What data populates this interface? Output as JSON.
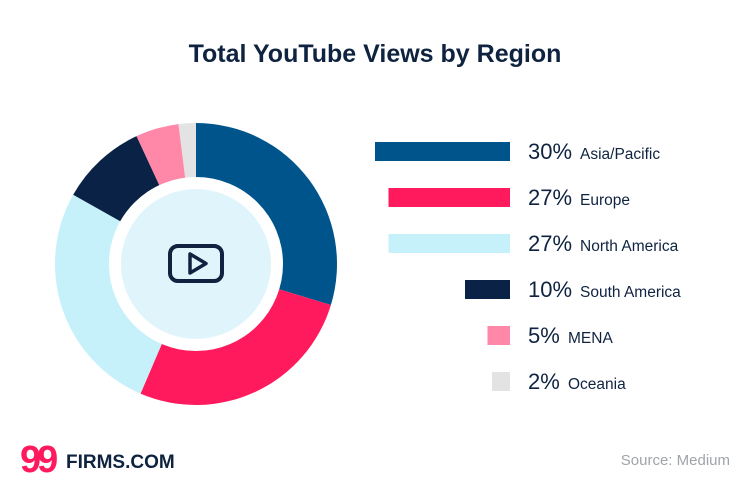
{
  "chart_data": {
    "type": "pie",
    "title": "Total YouTube Views by Region",
    "slices": [
      {
        "label": "Asia/Pacific",
        "value": 30,
        "pct_text": "30%",
        "color": "#00548c"
      },
      {
        "label": "Europe",
        "value": 27,
        "pct_text": "27%",
        "color": "#ff1a5e"
      },
      {
        "label": "North America",
        "value": 27,
        "pct_text": "27%",
        "color": "#c6f1fb"
      },
      {
        "label": "South America",
        "value": 10,
        "pct_text": "10%",
        "color": "#0a2245"
      },
      {
        "label": "MENA",
        "value": 5,
        "pct_text": "5%",
        "color": "#ff87a8"
      },
      {
        "label": "Oceania",
        "value": 2,
        "pct_text": "2%",
        "color": "#e3e3e3"
      }
    ],
    "center_icon": "youtube-play-icon",
    "center_color": "#e0f4fb"
  },
  "branding": {
    "logo_number": "99",
    "logo_text": "FIRMS.COM",
    "logo_color": "#ff1a5e",
    "logo_text_color": "#0f2340"
  },
  "source": "Source: Medium"
}
